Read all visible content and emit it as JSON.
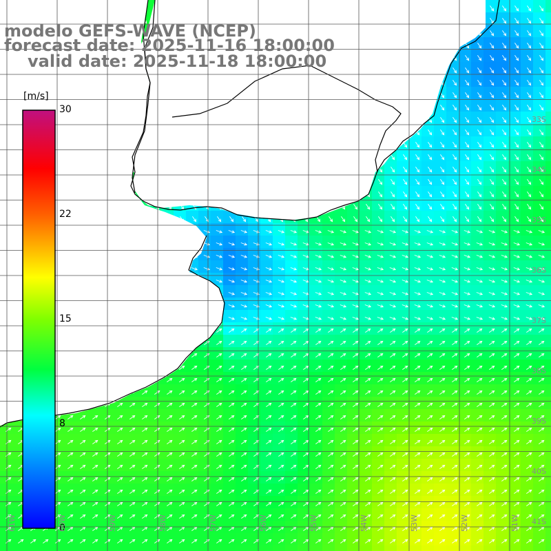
{
  "title": {
    "model": "modelo GEFS-WAVE (NCEP)",
    "forecast": "forecast date: 2025-11-16 18:00:00",
    "valid": "valid date: 2025-11-18 18:00:00"
  },
  "colorbar": {
    "unit": "[m/s]",
    "ticks": [
      {
        "label": "30",
        "value": 30
      },
      {
        "label": "22",
        "value": 22
      },
      {
        "label": "15",
        "value": 15
      },
      {
        "label": "8",
        "value": 8
      },
      {
        "label": "0",
        "value": 0
      }
    ],
    "colors": [
      "#0000ff",
      "#00c8ff",
      "#00ffff",
      "#00ff00",
      "#ffff00",
      "#ff8000",
      "#ff0000",
      "#c01080"
    ]
  },
  "lat_labels": [
    "33S",
    "34S",
    "35S",
    "36S",
    "37S",
    "38S",
    "39S",
    "40S",
    "41S"
  ],
  "lon_labels": [
    "61W",
    "60W",
    "59W",
    "58W",
    "57W",
    "56W",
    "55W",
    "54W",
    "53W",
    "52W",
    "51W"
  ],
  "colors": {
    "land": "#ffffff",
    "coast": "#000000",
    "grid": "#555555",
    "arrow": "#ffffff",
    "text": "#777777"
  }
}
